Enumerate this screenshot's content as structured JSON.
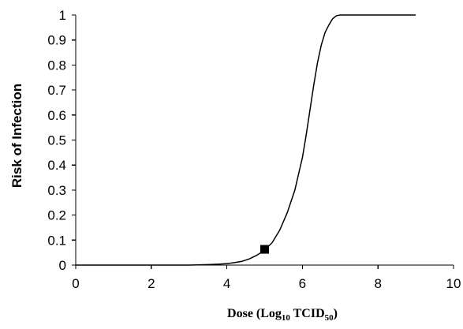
{
  "chart_data": {
    "type": "line",
    "title": "",
    "xlabel": {
      "text": "Dose (Log",
      "sub1": "10",
      "mid": " TCID",
      "sub2": "50",
      "end": ")"
    },
    "ylabel": "Risk of Infection",
    "xlim": [
      0,
      10
    ],
    "ylim": [
      0,
      1
    ],
    "xticks": [
      0,
      2,
      4,
      6,
      8,
      10
    ],
    "xtick_labels": [
      "0",
      "2",
      "4",
      "6",
      "8",
      "10"
    ],
    "yticks": [
      0,
      0.1,
      0.2,
      0.3,
      0.4,
      0.5,
      0.6,
      0.7,
      0.8,
      0.9,
      1
    ],
    "ytick_labels": [
      "0",
      "0.1",
      "0.2",
      "0.3",
      "0.4",
      "0.5",
      "0.6",
      "0.7",
      "0.8",
      "0.9",
      "1"
    ],
    "grid": false,
    "legend": "none",
    "series": [
      {
        "type": "line",
        "x": [
          0,
          3.0,
          3.5,
          3.8,
          4.0,
          4.2,
          4.4,
          4.6,
          4.8,
          5.0,
          5.2,
          5.4,
          5.6,
          5.8,
          6.0,
          6.1,
          6.2,
          6.3,
          6.4,
          6.5,
          6.6,
          6.7,
          6.8,
          6.9,
          7.0,
          7.5,
          8.0,
          9.0
        ],
        "y": [
          0,
          0,
          0.002,
          0.004,
          0.006,
          0.01,
          0.015,
          0.025,
          0.04,
          0.06,
          0.09,
          0.14,
          0.21,
          0.3,
          0.43,
          0.52,
          0.62,
          0.72,
          0.81,
          0.88,
          0.93,
          0.96,
          0.985,
          0.997,
          1,
          1,
          1,
          1
        ],
        "color": "#000000"
      }
    ],
    "markers": [
      {
        "x": 5.0,
        "y": 0.063,
        "shape": "square",
        "color": "#000000"
      }
    ]
  }
}
